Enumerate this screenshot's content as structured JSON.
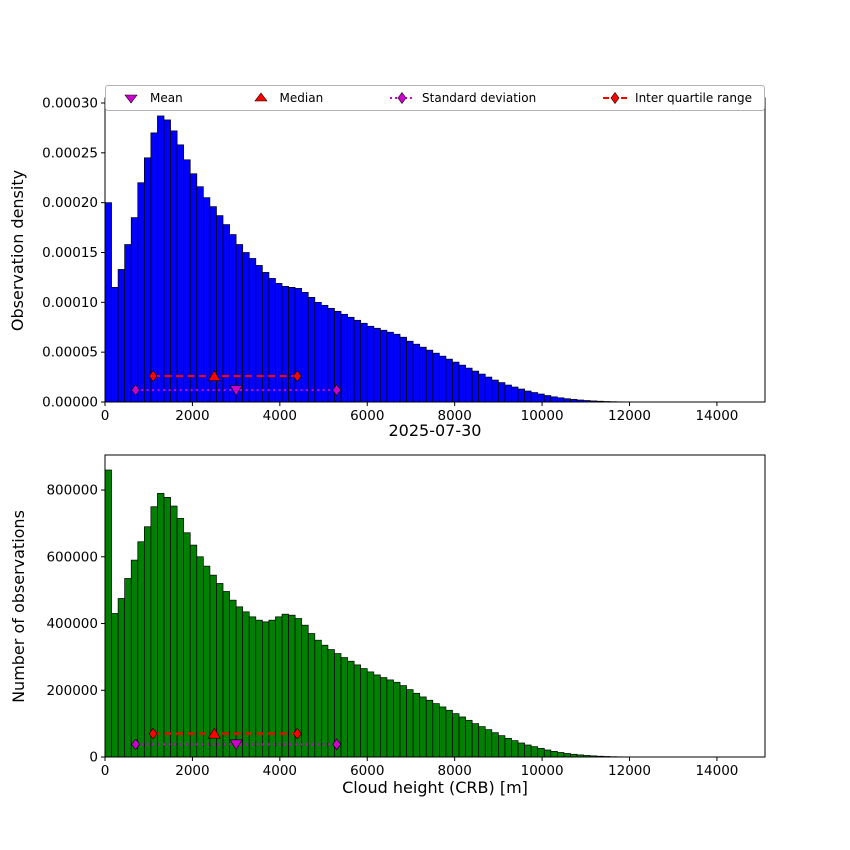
{
  "figure": {
    "mid_title": "2025-07-30",
    "xlabel": "Cloud height (CRB) [m]"
  },
  "legend": {
    "items": [
      {
        "label": "Mean",
        "marker": "triangle-down",
        "color": "#cc00cc"
      },
      {
        "label": "Median",
        "marker": "triangle-up",
        "color": "#ff0000"
      },
      {
        "label": "Standard deviation",
        "marker": "diamond-dotted-line",
        "color": "#cc00cc"
      },
      {
        "label": "Inter quartile range",
        "marker": "diamond-dashed-line",
        "color": "#ff0000"
      }
    ]
  },
  "chart_data": [
    {
      "id": "density",
      "type": "bar",
      "ylabel": "Observation density",
      "xlabel": "2025-07-30",
      "bar_color": "#0000ff",
      "bar_edge": "#000000",
      "bin_start": 0,
      "bin_width": 150,
      "values_scale": 1e-06,
      "values": [
        200,
        115,
        133,
        158,
        185,
        220,
        245,
        270,
        287,
        283,
        272,
        258,
        243,
        229,
        216,
        205,
        196,
        187,
        178,
        168,
        158,
        150,
        144,
        137,
        130,
        124,
        119,
        116,
        115,
        114,
        110,
        105,
        100,
        97,
        94,
        91,
        88,
        85,
        82,
        79,
        76,
        74,
        72,
        70,
        68,
        65,
        61,
        58,
        55,
        52,
        49,
        46,
        43,
        40,
        37,
        34,
        31,
        28,
        25,
        22,
        19.5,
        17,
        15,
        13,
        11,
        9.5,
        8,
        6.5,
        5.2,
        4.2,
        3.3,
        2.6,
        2,
        1.5,
        1.1,
        0.8,
        0.5,
        0.35,
        0.2,
        0.1
      ],
      "xlim": [
        0,
        15100
      ],
      "ylim": [
        0,
        0.000305
      ],
      "xticks": [
        0,
        2000,
        4000,
        6000,
        8000,
        10000,
        12000,
        14000
      ],
      "xtick_labels": [
        "0",
        "2000",
        "4000",
        "6000",
        "8000",
        "10000",
        "12000",
        "14000"
      ],
      "yticks": [
        0,
        5e-05,
        0.0001,
        0.00015,
        0.0002,
        0.00025,
        0.0003
      ],
      "ytick_labels": [
        "0.00000",
        "0.00005",
        "0.00010",
        "0.00015",
        "0.00020",
        "0.00025",
        "0.00030"
      ],
      "overlays": [
        {
          "type": "range",
          "name": "standard-deviation",
          "color": "#cc00cc",
          "dash": "dotted",
          "x1": 700,
          "x2": 5300,
          "y": 1.2e-05
        },
        {
          "type": "range",
          "name": "inter-quartile-range",
          "color": "#ff0000",
          "dash": "dashed",
          "x1": 1100,
          "x2": 4400,
          "y": 2.6e-05
        },
        {
          "type": "point",
          "name": "mean",
          "shape": "triangle-down",
          "color": "#cc00cc",
          "x": 3000,
          "y": 1.2e-05
        },
        {
          "type": "point",
          "name": "median",
          "shape": "triangle-up",
          "color": "#ff0000",
          "x": 2500,
          "y": 2.6e-05
        }
      ]
    },
    {
      "id": "counts",
      "type": "bar",
      "ylabel": "Number of observations",
      "xlabel": "Cloud height (CRB) [m]",
      "bar_color": "#008000",
      "bar_edge": "#000000",
      "bin_start": 0,
      "bin_width": 150,
      "values_scale": 1000,
      "values": [
        860,
        430,
        475,
        535,
        590,
        645,
        690,
        750,
        790,
        778,
        752,
        715,
        672,
        635,
        600,
        572,
        545,
        520,
        496,
        470,
        450,
        435,
        420,
        410,
        405,
        410,
        420,
        428,
        425,
        415,
        395,
        370,
        350,
        335,
        322,
        310,
        298,
        287,
        276,
        265,
        255,
        246,
        238,
        231,
        224,
        214,
        202,
        191,
        180,
        170,
        160,
        150,
        140,
        130,
        120,
        110,
        100,
        91,
        82,
        73,
        64,
        56,
        49,
        42,
        36,
        31,
        26,
        21,
        17,
        13.5,
        10.5,
        8.2,
        6.3,
        4.7,
        3.4,
        2.4,
        1.6,
        1.0,
        0.6,
        0.3
      ],
      "xlim": [
        0,
        15100
      ],
      "ylim": [
        0,
        905000
      ],
      "xticks": [
        0,
        2000,
        4000,
        6000,
        8000,
        10000,
        12000,
        14000
      ],
      "xtick_labels": [
        "0",
        "2000",
        "4000",
        "6000",
        "8000",
        "10000",
        "12000",
        "14000"
      ],
      "yticks": [
        0,
        200000,
        400000,
        600000,
        800000
      ],
      "ytick_labels": [
        "0",
        "200000",
        "400000",
        "600000",
        "800000"
      ],
      "overlays": [
        {
          "type": "range",
          "name": "standard-deviation",
          "color": "#cc00cc",
          "dash": "dotted",
          "x1": 700,
          "x2": 5300,
          "y": 38000
        },
        {
          "type": "range",
          "name": "inter-quartile-range",
          "color": "#ff0000",
          "dash": "dashed",
          "x1": 1100,
          "x2": 4400,
          "y": 70000
        },
        {
          "type": "point",
          "name": "mean",
          "shape": "triangle-down",
          "color": "#cc00cc",
          "x": 3000,
          "y": 38000
        },
        {
          "type": "point",
          "name": "median",
          "shape": "triangle-up",
          "color": "#ff0000",
          "x": 2500,
          "y": 70000
        }
      ]
    }
  ]
}
